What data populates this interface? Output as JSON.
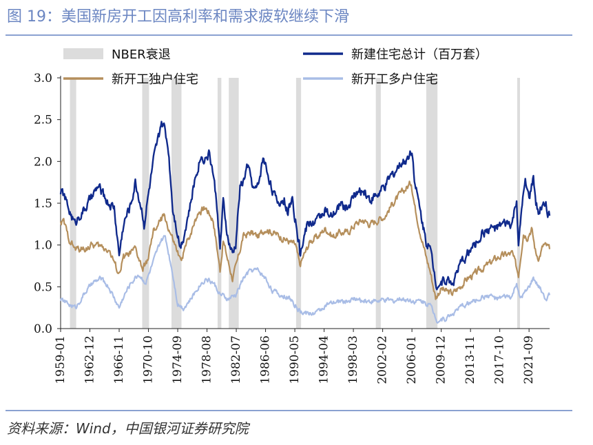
{
  "figure_title": "图 19：美国新房开工因高利率和需求疲软继续下滑",
  "source_note": "资料来源：Wind，中国银河证券研究院",
  "colors": {
    "title": "#6b86c2",
    "rule": "#8aa1d1",
    "recession": "#dcdcdc",
    "total": "#102a8c",
    "single": "#b58f5c",
    "multi": "#a9bde6"
  },
  "chart_data": {
    "type": "line",
    "title": "",
    "xlabel": "",
    "ylabel": "",
    "ylim": [
      0.0,
      3.0
    ],
    "yticks": [
      "3.0",
      "2.5",
      "2.0",
      "1.5",
      "1.0",
      "0.5",
      "0.0"
    ],
    "x_range": [
      "1959-01",
      "2024-06"
    ],
    "xticks": [
      "1959-01",
      "1962-12",
      "1966-11",
      "1970-10",
      "1974-09",
      "1978-08",
      "1982-07",
      "1986-06",
      "1990-05",
      "1994-04",
      "1998-03",
      "2002-02",
      "2006-01",
      "2009-12",
      "2013-11",
      "2017-10",
      "2021-09"
    ],
    "legend": {
      "placement": "top",
      "entries": [
        {
          "key": "recession",
          "label": "NBER衰退"
        },
        {
          "key": "total",
          "label": "新建住宅总计（百万套）"
        },
        {
          "key": "single",
          "label": "新开工独户住宅"
        },
        {
          "key": "multi",
          "label": "新开工多户住宅"
        }
      ]
    },
    "recessions": [
      [
        "1960-04",
        "1961-02"
      ],
      [
        "1969-12",
        "1970-11"
      ],
      [
        "1973-11",
        "1975-03"
      ],
      [
        "1980-01",
        "1980-07"
      ],
      [
        "1981-07",
        "1982-11"
      ],
      [
        "1990-07",
        "1991-03"
      ],
      [
        "2001-03",
        "2001-11"
      ],
      [
        "2007-12",
        "2009-06"
      ],
      [
        "2020-02",
        "2020-04"
      ]
    ],
    "series": [
      {
        "key": "total",
        "name": "新建住宅总计（百万套）",
        "points": [
          [
            "1959-01",
            1.65
          ],
          [
            "1959-06",
            1.6
          ],
          [
            "1960-01",
            1.45
          ],
          [
            "1960-12",
            1.25
          ],
          [
            "1961-06",
            1.35
          ],
          [
            "1962-01",
            1.4
          ],
          [
            "1963-06",
            1.6
          ],
          [
            "1964-01",
            1.7
          ],
          [
            "1965-06",
            1.5
          ],
          [
            "1966-03",
            1.45
          ],
          [
            "1966-11",
            0.88
          ],
          [
            "1967-06",
            1.25
          ],
          [
            "1968-06",
            1.5
          ],
          [
            "1969-01",
            1.75
          ],
          [
            "1969-12",
            1.4
          ],
          [
            "1970-03",
            1.25
          ],
          [
            "1970-12",
            1.7
          ],
          [
            "1971-06",
            2.0
          ],
          [
            "1972-03",
            2.3
          ],
          [
            "1972-06",
            2.45
          ],
          [
            "1972-12",
            2.4
          ],
          [
            "1973-06",
            2.15
          ],
          [
            "1974-01",
            1.45
          ],
          [
            "1974-09",
            1.15
          ],
          [
            "1975-01",
            0.98
          ],
          [
            "1975-06",
            1.1
          ],
          [
            "1976-06",
            1.5
          ],
          [
            "1977-01",
            1.8
          ],
          [
            "1977-09",
            2.05
          ],
          [
            "1978-06",
            2.05
          ],
          [
            "1978-12",
            2.1
          ],
          [
            "1979-06",
            1.85
          ],
          [
            "1980-01",
            1.4
          ],
          [
            "1980-05",
            0.95
          ],
          [
            "1980-10",
            1.5
          ],
          [
            "1981-06",
            1.05
          ],
          [
            "1982-01",
            0.88
          ],
          [
            "1982-06",
            1.0
          ],
          [
            "1983-01",
            1.7
          ],
          [
            "1983-06",
            1.75
          ],
          [
            "1984-01",
            1.95
          ],
          [
            "1984-12",
            1.65
          ],
          [
            "1985-06",
            1.7
          ],
          [
            "1986-02",
            2.05
          ],
          [
            "1986-12",
            1.8
          ],
          [
            "1987-12",
            1.5
          ],
          [
            "1988-12",
            1.55
          ],
          [
            "1989-06",
            1.4
          ],
          [
            "1990-01",
            1.55
          ],
          [
            "1990-12",
            1.0
          ],
          [
            "1991-01",
            0.85
          ],
          [
            "1991-06",
            1.05
          ],
          [
            "1992-01",
            1.25
          ],
          [
            "1993-06",
            1.3
          ],
          [
            "1994-06",
            1.45
          ],
          [
            "1995-01",
            1.3
          ],
          [
            "1995-12",
            1.4
          ],
          [
            "1996-06",
            1.5
          ],
          [
            "1997-06",
            1.45
          ],
          [
            "1998-06",
            1.6
          ],
          [
            "1999-06",
            1.65
          ],
          [
            "2000-06",
            1.55
          ],
          [
            "2001-06",
            1.6
          ],
          [
            "2002-06",
            1.7
          ],
          [
            "2003-06",
            1.85
          ],
          [
            "2004-06",
            1.95
          ],
          [
            "2005-06",
            2.05
          ],
          [
            "2006-01",
            2.15
          ],
          [
            "2006-06",
            1.75
          ],
          [
            "2007-01",
            1.45
          ],
          [
            "2007-12",
            1.05
          ],
          [
            "2008-06",
            0.95
          ],
          [
            "2009-04",
            0.55
          ],
          [
            "2009-12",
            0.55
          ],
          [
            "2010-06",
            0.6
          ],
          [
            "2011-06",
            0.55
          ],
          [
            "2012-06",
            0.75
          ],
          [
            "2013-06",
            0.9
          ],
          [
            "2014-06",
            1.0
          ],
          [
            "2015-06",
            1.15
          ],
          [
            "2016-06",
            1.2
          ],
          [
            "2017-06",
            1.2
          ],
          [
            "2018-06",
            1.25
          ],
          [
            "2019-06",
            1.25
          ],
          [
            "2020-01",
            1.55
          ],
          [
            "2020-04",
            0.95
          ],
          [
            "2020-10",
            1.5
          ],
          [
            "2021-03",
            1.72
          ],
          [
            "2021-09",
            1.55
          ],
          [
            "2022-04",
            1.8
          ],
          [
            "2022-08",
            1.5
          ],
          [
            "2023-01",
            1.35
          ],
          [
            "2023-06",
            1.5
          ],
          [
            "2023-12",
            1.55
          ],
          [
            "2024-03",
            1.3
          ],
          [
            "2024-06",
            1.35
          ]
        ]
      },
      {
        "key": "single",
        "name": "新开工独户住宅",
        "points": [
          [
            "1959-01",
            1.25
          ],
          [
            "1959-06",
            1.28
          ],
          [
            "1960-01",
            1.1
          ],
          [
            "1960-12",
            0.95
          ],
          [
            "1962-01",
            0.95
          ],
          [
            "1963-06",
            1.0
          ],
          [
            "1964-06",
            0.98
          ],
          [
            "1965-06",
            0.95
          ],
          [
            "1966-11",
            0.65
          ],
          [
            "1967-06",
            0.85
          ],
          [
            "1968-06",
            0.9
          ],
          [
            "1969-01",
            0.95
          ],
          [
            "1970-01",
            0.7
          ],
          [
            "1970-10",
            0.85
          ],
          [
            "1971-06",
            1.15
          ],
          [
            "1972-06",
            1.3
          ],
          [
            "1972-12",
            1.35
          ],
          [
            "1973-06",
            1.2
          ],
          [
            "1974-09",
            0.9
          ],
          [
            "1975-01",
            0.8
          ],
          [
            "1976-01",
            1.05
          ],
          [
            "1977-06",
            1.4
          ],
          [
            "1978-06",
            1.45
          ],
          [
            "1979-06",
            1.3
          ],
          [
            "1980-05",
            0.7
          ],
          [
            "1980-10",
            1.05
          ],
          [
            "1981-06",
            0.8
          ],
          [
            "1982-01",
            0.6
          ],
          [
            "1982-07",
            0.75
          ],
          [
            "1983-06",
            1.1
          ],
          [
            "1984-06",
            1.15
          ],
          [
            "1985-06",
            1.1
          ],
          [
            "1986-06",
            1.2
          ],
          [
            "1987-06",
            1.15
          ],
          [
            "1988-06",
            1.1
          ],
          [
            "1989-06",
            1.05
          ],
          [
            "1990-06",
            1.0
          ],
          [
            "1991-01",
            0.75
          ],
          [
            "1991-06",
            0.85
          ],
          [
            "1992-06",
            1.05
          ],
          [
            "1993-06",
            1.1
          ],
          [
            "1994-06",
            1.2
          ],
          [
            "1995-06",
            1.1
          ],
          [
            "1996-06",
            1.15
          ],
          [
            "1997-06",
            1.15
          ],
          [
            "1998-06",
            1.25
          ],
          [
            "1999-06",
            1.3
          ],
          [
            "2000-06",
            1.25
          ],
          [
            "2001-06",
            1.3
          ],
          [
            "2002-06",
            1.35
          ],
          [
            "2003-06",
            1.5
          ],
          [
            "2004-06",
            1.6
          ],
          [
            "2005-06",
            1.7
          ],
          [
            "2005-12",
            1.75
          ],
          [
            "2006-06",
            1.45
          ],
          [
            "2007-01",
            1.2
          ],
          [
            "2007-12",
            0.85
          ],
          [
            "2008-06",
            0.7
          ],
          [
            "2009-03",
            0.37
          ],
          [
            "2009-12",
            0.48
          ],
          [
            "2010-06",
            0.45
          ],
          [
            "2011-06",
            0.42
          ],
          [
            "2012-06",
            0.5
          ],
          [
            "2013-06",
            0.6
          ],
          [
            "2014-06",
            0.65
          ],
          [
            "2015-06",
            0.72
          ],
          [
            "2016-06",
            0.78
          ],
          [
            "2017-06",
            0.85
          ],
          [
            "2018-06",
            0.88
          ],
          [
            "2019-06",
            0.9
          ],
          [
            "2020-04",
            0.65
          ],
          [
            "2020-12",
            1.15
          ],
          [
            "2021-06",
            1.1
          ],
          [
            "2022-01",
            1.2
          ],
          [
            "2022-08",
            0.9
          ],
          [
            "2023-01",
            0.85
          ],
          [
            "2023-08",
            1.0
          ],
          [
            "2024-03",
            0.98
          ],
          [
            "2024-06",
            0.95
          ]
        ]
      },
      {
        "key": "multi",
        "name": "新开工多户住宅",
        "points": [
          [
            "1959-01",
            0.35
          ],
          [
            "1959-12",
            0.3
          ],
          [
            "1961-01",
            0.25
          ],
          [
            "1962-06",
            0.45
          ],
          [
            "1963-06",
            0.55
          ],
          [
            "1964-06",
            0.6
          ],
          [
            "1965-06",
            0.5
          ],
          [
            "1966-11",
            0.25
          ],
          [
            "1967-06",
            0.38
          ],
          [
            "1968-06",
            0.55
          ],
          [
            "1969-06",
            0.65
          ],
          [
            "1970-06",
            0.55
          ],
          [
            "1971-06",
            0.8
          ],
          [
            "1972-06",
            1.05
          ],
          [
            "1973-01",
            1.1
          ],
          [
            "1973-12",
            0.7
          ],
          [
            "1974-09",
            0.3
          ],
          [
            "1975-06",
            0.25
          ],
          [
            "1976-06",
            0.35
          ],
          [
            "1977-06",
            0.5
          ],
          [
            "1978-06",
            0.6
          ],
          [
            "1979-06",
            0.55
          ],
          [
            "1980-06",
            0.4
          ],
          [
            "1981-06",
            0.35
          ],
          [
            "1982-06",
            0.4
          ],
          [
            "1983-06",
            0.6
          ],
          [
            "1984-06",
            0.7
          ],
          [
            "1985-06",
            0.7
          ],
          [
            "1986-06",
            0.6
          ],
          [
            "1987-06",
            0.45
          ],
          [
            "1988-06",
            0.4
          ],
          [
            "1989-06",
            0.38
          ],
          [
            "1990-06",
            0.28
          ],
          [
            "1991-01",
            0.2
          ],
          [
            "1992-06",
            0.18
          ],
          [
            "1993-06",
            0.2
          ],
          [
            "1994-06",
            0.28
          ],
          [
            "1995-06",
            0.3
          ],
          [
            "1996-06",
            0.33
          ],
          [
            "1997-06",
            0.33
          ],
          [
            "1998-06",
            0.35
          ],
          [
            "1999-06",
            0.33
          ],
          [
            "2000-06",
            0.33
          ],
          [
            "2001-06",
            0.33
          ],
          [
            "2002-06",
            0.34
          ],
          [
            "2003-06",
            0.33
          ],
          [
            "2004-06",
            0.35
          ],
          [
            "2005-06",
            0.35
          ],
          [
            "2006-06",
            0.33
          ],
          [
            "2007-06",
            0.33
          ],
          [
            "2008-06",
            0.28
          ],
          [
            "2009-06",
            0.1
          ],
          [
            "2010-06",
            0.12
          ],
          [
            "2011-06",
            0.18
          ],
          [
            "2012-06",
            0.25
          ],
          [
            "2013-06",
            0.3
          ],
          [
            "2014-06",
            0.33
          ],
          [
            "2015-06",
            0.38
          ],
          [
            "2016-06",
            0.4
          ],
          [
            "2017-06",
            0.35
          ],
          [
            "2018-06",
            0.38
          ],
          [
            "2019-06",
            0.38
          ],
          [
            "2020-01",
            0.55
          ],
          [
            "2020-06",
            0.35
          ],
          [
            "2021-06",
            0.45
          ],
          [
            "2022-04",
            0.6
          ],
          [
            "2022-12",
            0.5
          ],
          [
            "2023-06",
            0.45
          ],
          [
            "2024-01",
            0.35
          ],
          [
            "2024-06",
            0.4
          ]
        ]
      }
    ]
  }
}
